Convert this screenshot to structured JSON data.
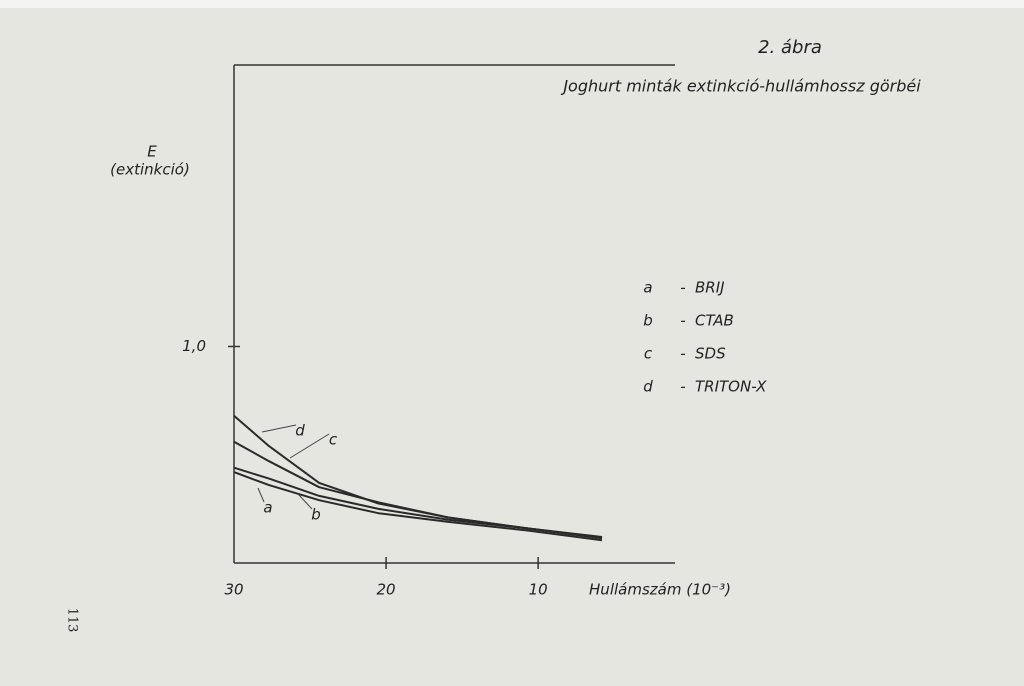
{
  "chart_data": {
    "type": "line",
    "title": "2. ábra",
    "subtitle": "Joghurt minták extinkció-hullámhossz görbéi",
    "y_label": "E",
    "y_label_sub": "(extinkció)",
    "x_label": "Hullámszám (10⁻³)",
    "page_number": "113",
    "legend_dash": "-",
    "x": [
      30,
      27.7,
      24.4,
      20.5,
      15.9,
      10.7,
      5.8
    ],
    "xlim": [
      30,
      1
    ],
    "xticks": [
      30,
      20,
      10
    ],
    "ylim": [
      0,
      2.3
    ],
    "yticks": [
      {
        "value": 1,
        "label": "1,0"
      }
    ],
    "series": [
      {
        "key": "a",
        "name": "BRIJ",
        "color": "#2a2a2a",
        "values": [
          0.42,
          0.36,
          0.29,
          0.23,
          0.19,
          0.15,
          0.105
        ]
      },
      {
        "key": "b",
        "name": "CTAB",
        "color": "#2a2a2a",
        "values": [
          0.44,
          0.39,
          0.31,
          0.25,
          0.2,
          0.16,
          0.12
        ]
      },
      {
        "key": "c",
        "name": "SDS",
        "color": "#2a2a2a",
        "values": [
          0.56,
          0.47,
          0.35,
          0.28,
          0.21,
          0.16,
          0.115
        ]
      },
      {
        "key": "d",
        "name": "TRITON-X",
        "color": "#2a2a2a",
        "values": [
          0.68,
          0.54,
          0.37,
          0.275,
          0.21,
          0.16,
          0.115
        ]
      }
    ]
  }
}
